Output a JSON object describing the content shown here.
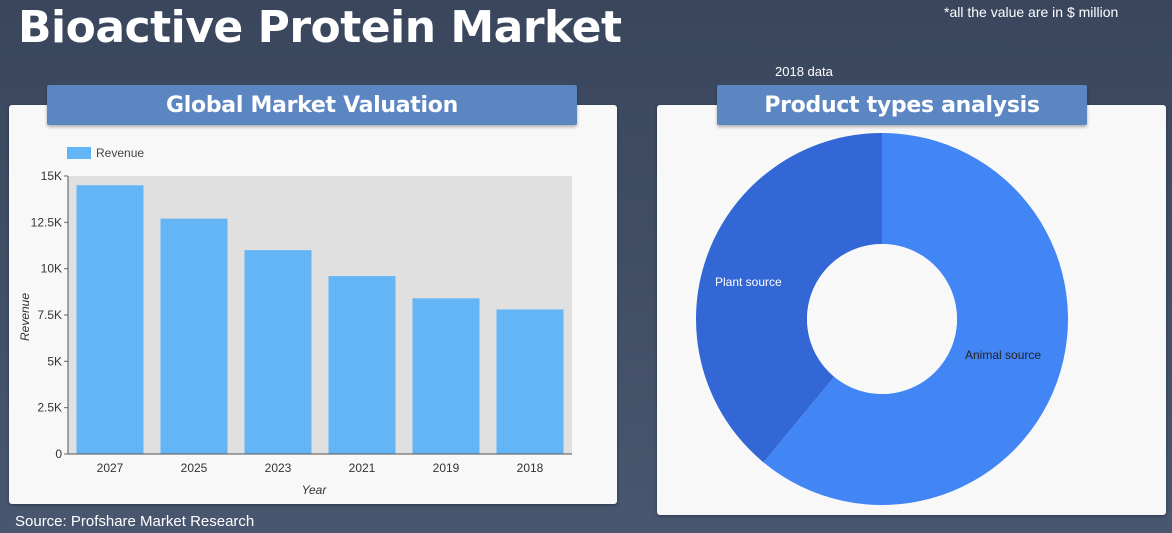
{
  "page": {
    "title": "Bioactive Protein Market",
    "note": "*all the value are in $ million",
    "data_year_label": "2018 data",
    "source": "Source: Profshare Market Research"
  },
  "colors": {
    "background": "#3d4a60",
    "header": "#5b86c1",
    "bar": "#64b5f6",
    "plot_bg": "#e0e0e0",
    "animal": "#4285f4",
    "plant": "#3367d6"
  },
  "panels": {
    "left_title": "Global Market Valuation",
    "right_title": "Product types analysis"
  },
  "chart_data": [
    {
      "type": "bar",
      "title": "Global Market Valuation",
      "xlabel": "Year",
      "ylabel": "Revenue",
      "categories": [
        "2027",
        "2025",
        "2023",
        "2021",
        "2019",
        "2018"
      ],
      "series": [
        {
          "name": "Revenue",
          "values": [
            14500,
            12700,
            11000,
            9600,
            8400,
            7800
          ]
        }
      ],
      "ylim": [
        0,
        15000
      ],
      "yticks": [
        0,
        2500,
        5000,
        7500,
        10000,
        12500,
        15000
      ],
      "ytick_labels": [
        "0",
        "2.5K",
        "5K",
        "7.5K",
        "10K",
        "12.5K",
        "15K"
      ],
      "legend": "top-left",
      "grid": false
    },
    {
      "type": "pie",
      "title": "Product types analysis",
      "donut": true,
      "slices": [
        {
          "label": "Animal source",
          "value": 61
        },
        {
          "label": "Plant source",
          "value": 39
        }
      ]
    }
  ]
}
